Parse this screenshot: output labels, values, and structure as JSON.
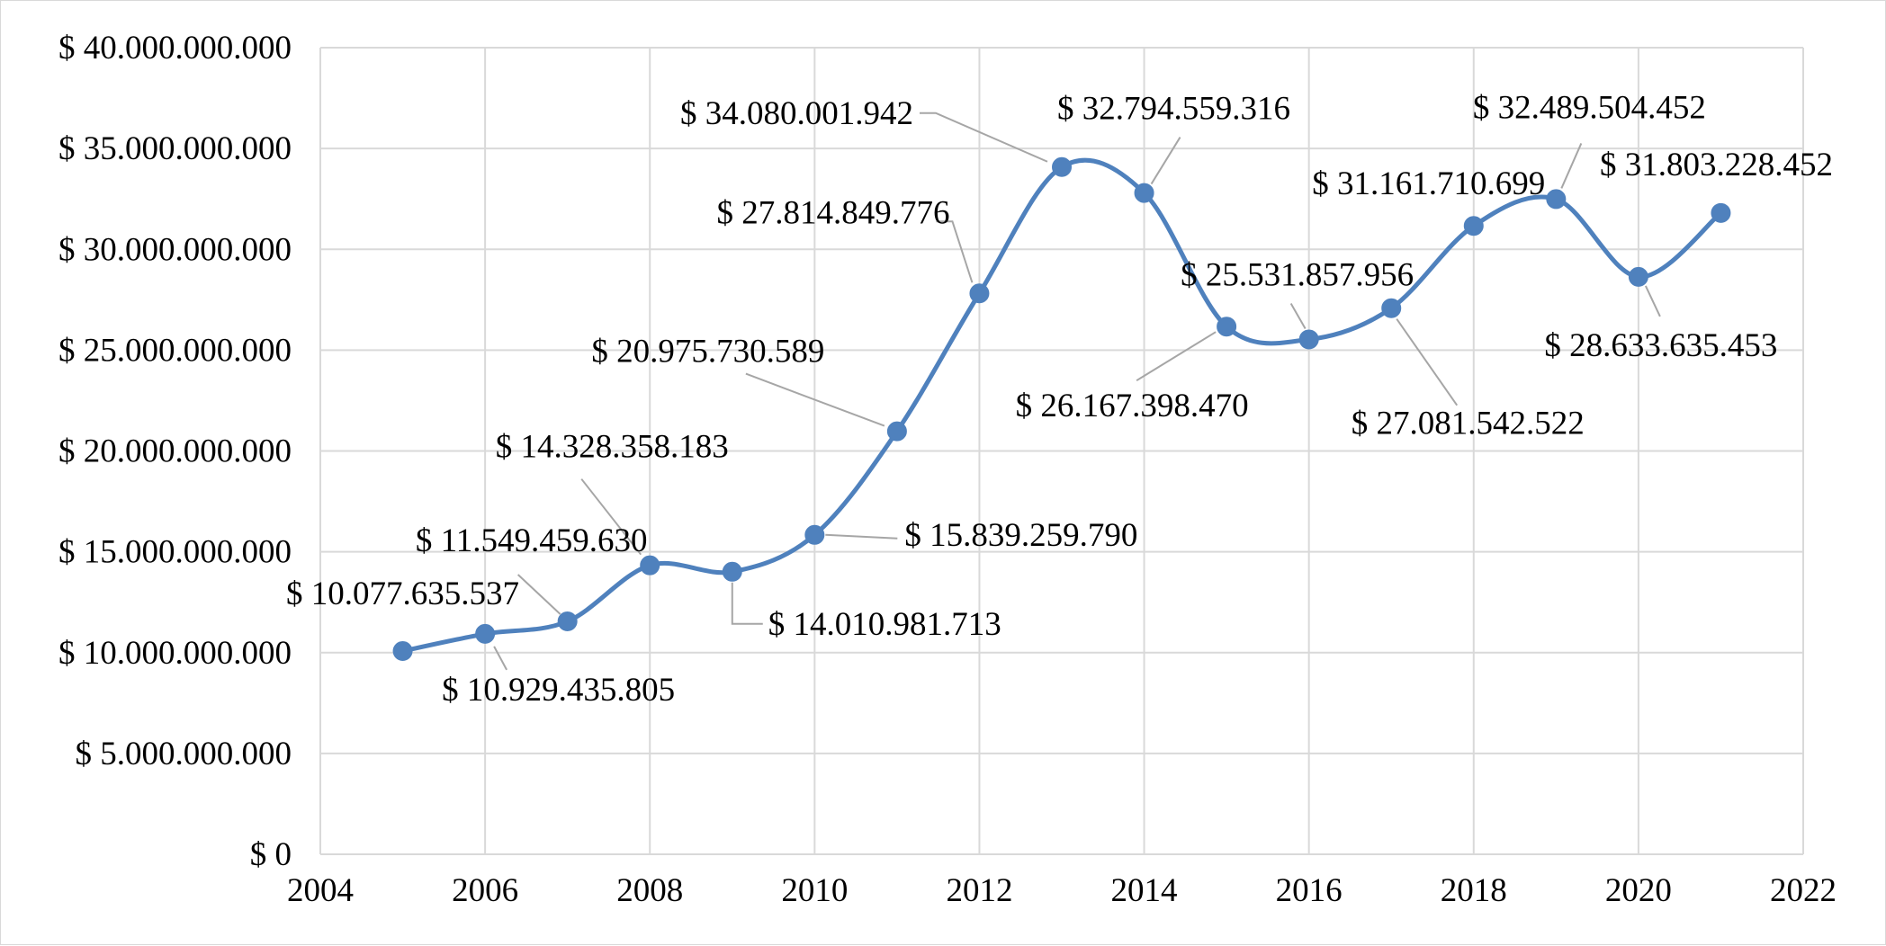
{
  "chart_data": {
    "type": "scatter",
    "title": "",
    "xlabel": "",
    "ylabel": "",
    "xlim": [
      2004,
      2022
    ],
    "ylim": [
      0,
      40000000000
    ],
    "x_ticks": [
      2004,
      2006,
      2008,
      2010,
      2012,
      2014,
      2016,
      2018,
      2020,
      2022
    ],
    "x_tick_labels": [
      "2004",
      "2006",
      "2008",
      "2010",
      "2012",
      "2014",
      "2016",
      "2018",
      "2020",
      "2022"
    ],
    "y_ticks": [
      0,
      5000000000,
      10000000000,
      15000000000,
      20000000000,
      25000000000,
      30000000000,
      35000000000,
      40000000000
    ],
    "y_tick_labels": [
      "$ 0",
      "$ 5.000.000.000",
      "$ 10.000.000.000",
      "$ 15.000.000.000",
      "$ 20.000.000.000",
      "$ 25.000.000.000",
      "$ 30.000.000.000",
      "$ 35.000.000.000",
      "$ 40.000.000.000"
    ],
    "grid": true,
    "legend": "none",
    "line_style": "smoothed",
    "color": "#4f81bd",
    "series": [
      {
        "x": [
          2005,
          2006,
          2007,
          2008,
          2009,
          2010,
          2011,
          2012,
          2013,
          2014,
          2015,
          2016,
          2017,
          2018,
          2019,
          2020,
          2021
        ],
        "y": [
          10077635537,
          10929435805,
          11549459630,
          14328358183,
          14010981713,
          15839259790,
          20975730589,
          27814849776,
          34080001942,
          32794559316,
          26167398470,
          25531857956,
          27081542522,
          31161710699,
          32489504452,
          28633635453,
          31803228452
        ],
        "labels": [
          "$ 10.077.635.537",
          "$ 10.929.435.805",
          "$ 11.549.459.630",
          "$ 14.328.358.183",
          "$ 14.010.981.713",
          "$ 15.839.259.790",
          "$ 20.975.730.589",
          "$ 27.814.849.776",
          "$ 34.080.001.942",
          "$ 32.794.559.316",
          "$ 26.167.398.470",
          "$ 25.531.857.956",
          "$ 27.081.542.522",
          "$ 31.161.710.699",
          "$ 32.489.504.452",
          "$ 28.633.635.453",
          "$ 31.803.228.452"
        ]
      }
    ]
  }
}
